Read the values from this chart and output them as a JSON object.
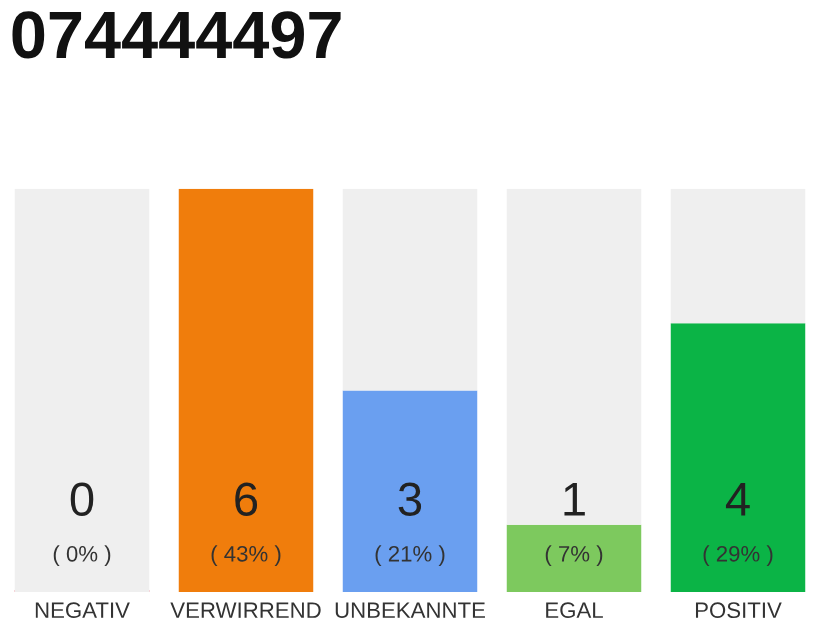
{
  "chart_data": {
    "type": "bar",
    "title": "074444497",
    "stacked": true,
    "categories": [
      "NEGATIV",
      "VERWIRREND",
      "UNBEKANNTE",
      "EGAL",
      "POSITIV"
    ],
    "series": [
      {
        "colors": [
          "#e5344c",
          "#f07d0c",
          "#6a9ff0",
          "#7dc95e",
          "#0bb446"
        ],
        "values": [
          0,
          6,
          3,
          1,
          4
        ],
        "value_labels": [
          "0\n( 0% )",
          "6\n( 43% )",
          "3\n( 21% )",
          "1\n( 7% )",
          "4\n( 29% )"
        ]
      },
      {
        "color": "#efefef",
        "values": [
          6,
          0,
          3,
          5,
          2
        ]
      }
    ],
    "ylim": [
      0,
      6
    ],
    "tick_labels": "x",
    "grid": false,
    "legend": false
  }
}
